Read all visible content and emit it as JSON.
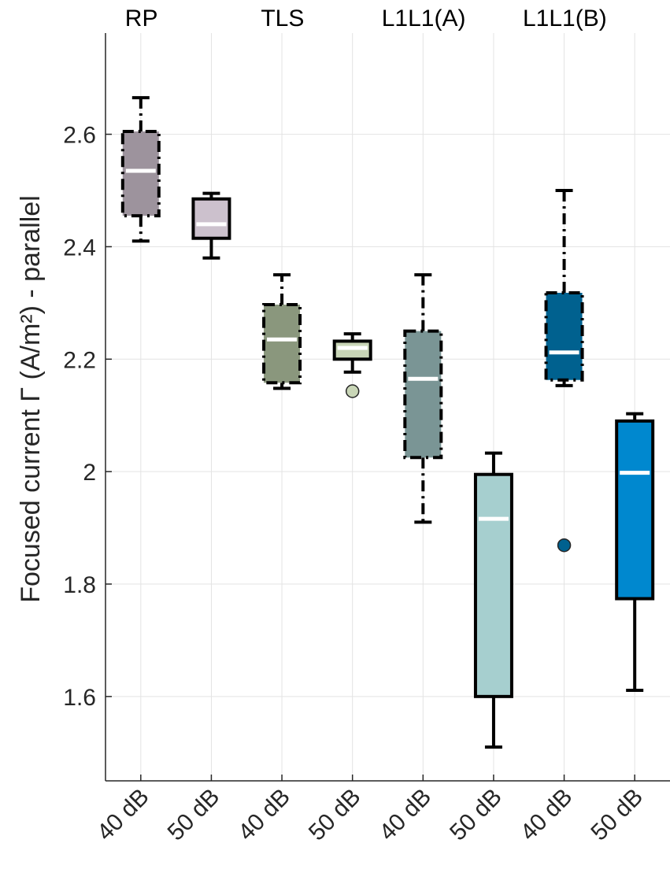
{
  "chart_data": {
    "type": "box",
    "ylabel": "Focused current Γ (A/m²) - parallel",
    "ylim": [
      1.45,
      2.78
    ],
    "yticks": [
      1.6,
      1.8,
      2.0,
      2.2,
      2.4,
      2.6
    ],
    "ytick_labels": [
      "1.6",
      "1.8",
      "2",
      "2.2",
      "2.4",
      "2.6"
    ],
    "grid": true,
    "groups": [
      "RP",
      "TLS",
      "L1L1(A)",
      "L1L1(B)"
    ],
    "categories": [
      "40 dB",
      "50 dB",
      "40 dB",
      "50 dB",
      "40 dB",
      "50 dB",
      "40 dB",
      "50 dB"
    ],
    "boxes": [
      {
        "group": "RP",
        "condition": "40 dB",
        "whisker_low": 2.41,
        "q1": 2.455,
        "median": 2.535,
        "q3": 2.605,
        "whisker_high": 2.665,
        "outliers": [],
        "color": "#9d939d",
        "line": "dashdot"
      },
      {
        "group": "RP",
        "condition": "50 dB",
        "whisker_low": 2.38,
        "q1": 2.415,
        "median": 2.44,
        "q3": 2.485,
        "whisker_high": 2.495,
        "outliers": [],
        "color": "#ccc1cd",
        "line": "solid"
      },
      {
        "group": "TLS",
        "condition": "40 dB",
        "whisker_low": 2.148,
        "q1": 2.158,
        "median": 2.235,
        "q3": 2.297,
        "whisker_high": 2.35,
        "outliers": [],
        "color": "#8a977d",
        "line": "dashdot"
      },
      {
        "group": "TLS",
        "condition": "50 dB",
        "whisker_low": 2.177,
        "q1": 2.2,
        "median": 2.22,
        "q3": 2.232,
        "whisker_high": 2.245,
        "outliers": [
          2.143
        ],
        "color": "#c9d6b7",
        "line": "solid"
      },
      {
        "group": "L1L1(A)",
        "condition": "40 dB",
        "whisker_low": 1.91,
        "q1": 2.025,
        "median": 2.165,
        "q3": 2.25,
        "whisker_high": 2.35,
        "outliers": [],
        "color": "#7a9595",
        "line": "dashdot"
      },
      {
        "group": "L1L1(A)",
        "condition": "50 dB",
        "whisker_low": 1.51,
        "q1": 1.6,
        "median": 1.916,
        "q3": 1.995,
        "whisker_high": 2.033,
        "outliers": [],
        "color": "#a6cfcf",
        "line": "solid"
      },
      {
        "group": "L1L1(B)",
        "condition": "40 dB",
        "whisker_low": 2.153,
        "q1": 2.163,
        "median": 2.212,
        "q3": 2.318,
        "whisker_high": 2.5,
        "outliers": [
          1.869
        ],
        "color": "#00618f",
        "line": "dashdot"
      },
      {
        "group": "L1L1(B)",
        "condition": "50 dB",
        "whisker_low": 1.611,
        "q1": 1.774,
        "median": 1.998,
        "q3": 2.09,
        "whisker_high": 2.103,
        "outliers": [],
        "color": "#0088cf",
        "line": "solid"
      }
    ]
  }
}
